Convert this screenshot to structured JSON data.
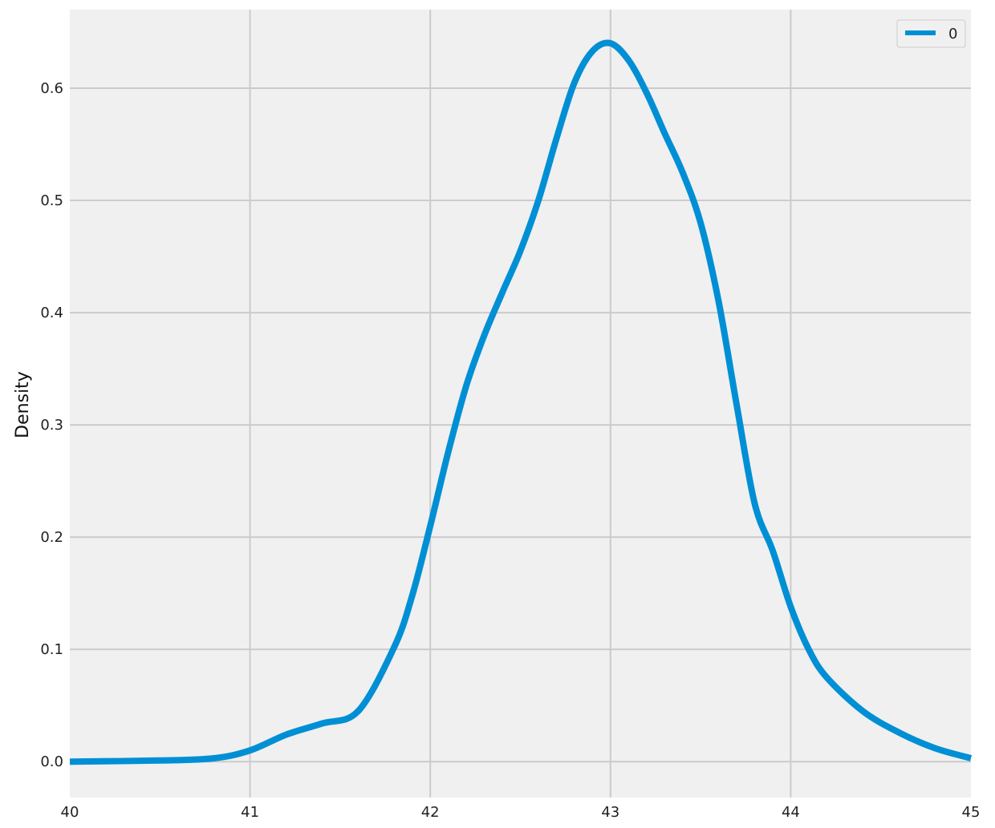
{
  "chart_data": {
    "type": "line",
    "title": "",
    "xlabel": "",
    "ylabel": "Density",
    "xlim": [
      40,
      45
    ],
    "ylim": [
      -0.032,
      0.67
    ],
    "xticks": [
      40,
      41,
      42,
      43,
      44,
      45
    ],
    "xtick_labels": [
      "40",
      "41",
      "42",
      "43",
      "44",
      "45"
    ],
    "yticks": [
      0.0,
      0.1,
      0.2,
      0.3,
      0.4,
      0.5,
      0.6
    ],
    "ytick_labels": [
      "0.0",
      "0.1",
      "0.2",
      "0.3",
      "0.4",
      "0.5",
      "0.6"
    ],
    "grid": true,
    "legend_position": "top-right",
    "colors": {
      "line": "#008fd5",
      "plot_background": "#f0f0f0",
      "grid": "#cbcbcb"
    },
    "series": [
      {
        "name": "0",
        "x": [
          40.0,
          40.5,
          40.8,
          41.0,
          41.2,
          41.4,
          41.6,
          41.8,
          41.9,
          42.0,
          42.1,
          42.2,
          42.3,
          42.4,
          42.5,
          42.6,
          42.7,
          42.8,
          42.9,
          43.0,
          43.1,
          43.2,
          43.3,
          43.4,
          43.5,
          43.6,
          43.7,
          43.8,
          43.9,
          44.0,
          44.1,
          44.2,
          44.4,
          44.6,
          44.8,
          45.0
        ],
        "y": [
          0.0,
          0.001,
          0.003,
          0.01,
          0.024,
          0.034,
          0.045,
          0.102,
          0.148,
          0.21,
          0.276,
          0.335,
          0.38,
          0.418,
          0.455,
          0.5,
          0.555,
          0.605,
          0.633,
          0.64,
          0.625,
          0.596,
          0.56,
          0.525,
          0.48,
          0.41,
          0.318,
          0.23,
          0.188,
          0.138,
          0.1,
          0.075,
          0.045,
          0.026,
          0.012,
          0.003
        ]
      }
    ]
  }
}
